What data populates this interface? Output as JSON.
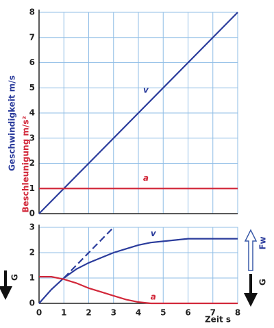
{
  "chart_data": [
    {
      "type": "line",
      "xlim": [
        0,
        8
      ],
      "ylim": [
        0,
        8
      ],
      "xticks": [
        0,
        1,
        2,
        3,
        4,
        5,
        6,
        7,
        8
      ],
      "yticks": [
        0,
        1,
        2,
        3,
        4,
        5,
        6,
        7,
        8
      ],
      "show_xtick_labels": false,
      "grid": true,
      "y_label": "Geschwindigkeit m/s",
      "y_label_color": "#2b3c9c",
      "y2_label": "Beschleunigung m/s²",
      "y2_label_color": "#d2283a",
      "series": [
        {
          "name": "v",
          "color": "#2b3c9c",
          "x": [
            0,
            8
          ],
          "values": [
            0,
            8
          ]
        },
        {
          "name": "a",
          "color": "#d2283a",
          "x": [
            0,
            8
          ],
          "values": [
            1,
            1
          ]
        }
      ]
    },
    {
      "type": "line",
      "xlim": [
        0,
        8
      ],
      "ylim": [
        0,
        3
      ],
      "xticks": [
        0,
        1,
        2,
        3,
        4,
        5,
        6,
        7,
        8
      ],
      "yticks": [
        0,
        1,
        2,
        3
      ],
      "show_xtick_labels": true,
      "grid": true,
      "x_label": "Zeit s",
      "left_label": "G",
      "right_label_top": "Fw",
      "right_label_bottom": "G",
      "series": [
        {
          "name": "v",
          "color": "#2b3c9c",
          "x": [
            0,
            0.5,
            1,
            1.5,
            2,
            2.5,
            3,
            3.5,
            4,
            4.5,
            5,
            5.5,
            6,
            7,
            8
          ],
          "values": [
            0,
            0.55,
            1.0,
            1.35,
            1.6,
            1.8,
            2.0,
            2.15,
            2.3,
            2.4,
            2.45,
            2.5,
            2.55,
            2.55,
            2.55
          ]
        },
        {
          "name": "a",
          "color": "#d2283a",
          "x": [
            0,
            0.5,
            1,
            1.5,
            2,
            2.5,
            3,
            3.5,
            4,
            4.5,
            5,
            6,
            7,
            8
          ],
          "values": [
            1.05,
            1.05,
            0.95,
            0.8,
            0.6,
            0.45,
            0.3,
            0.15,
            0.05,
            0,
            0,
            0,
            0,
            0
          ]
        },
        {
          "color": "#2b3c9c",
          "dashed": true,
          "x": [
            1,
            3
          ],
          "values": [
            1,
            3
          ]
        }
      ]
    }
  ]
}
